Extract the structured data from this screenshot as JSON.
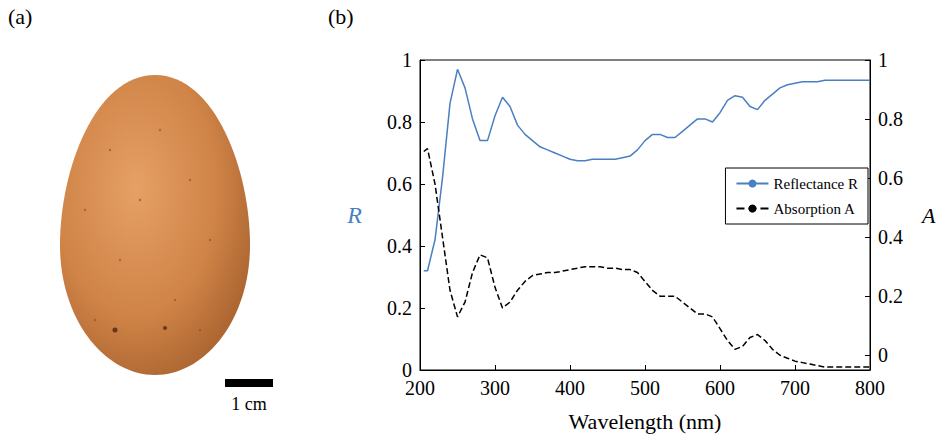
{
  "figure": {
    "panel_labels": [
      "(a)",
      "(b)"
    ],
    "photo": {
      "scale_bar": "1 cm"
    }
  },
  "chart_data": {
    "type": "line",
    "x_label": "Wavelength (nm)",
    "y_label": "R",
    "y2_label": "A",
    "xlim": [
      200,
      800
    ],
    "xticks": [
      200,
      300,
      400,
      500,
      600,
      700,
      800
    ],
    "ylim": [
      0,
      1
    ],
    "yticks": [
      0,
      0.2,
      0.4,
      0.6,
      0.8,
      1
    ],
    "y2lim": [
      -0.05,
      1
    ],
    "y2ticks": [
      0,
      0.2,
      0.4,
      0.6,
      0.8,
      1
    ],
    "grid": false,
    "legend": "right",
    "x": [
      205,
      210,
      220,
      230,
      240,
      250,
      260,
      270,
      280,
      290,
      300,
      310,
      320,
      330,
      340,
      350,
      360,
      370,
      380,
      390,
      400,
      410,
      420,
      430,
      440,
      450,
      460,
      470,
      480,
      490,
      500,
      510,
      520,
      530,
      540,
      550,
      560,
      570,
      580,
      590,
      600,
      610,
      620,
      630,
      640,
      650,
      660,
      670,
      680,
      690,
      700,
      710,
      720,
      730,
      740,
      750,
      760,
      770,
      780,
      790,
      800
    ],
    "series": [
      {
        "name": "Reflectance R",
        "color": "#4a7fc1",
        "line_style": "solid",
        "values": [
          0.32,
          0.32,
          0.42,
          0.62,
          0.86,
          0.97,
          0.91,
          0.81,
          0.74,
          0.74,
          0.82,
          0.88,
          0.85,
          0.79,
          0.76,
          0.74,
          0.72,
          0.71,
          0.7,
          0.69,
          0.68,
          0.675,
          0.675,
          0.68,
          0.68,
          0.68,
          0.68,
          0.685,
          0.69,
          0.71,
          0.74,
          0.76,
          0.76,
          0.75,
          0.75,
          0.77,
          0.79,
          0.81,
          0.81,
          0.8,
          0.83,
          0.87,
          0.885,
          0.88,
          0.85,
          0.84,
          0.87,
          0.89,
          0.91,
          0.92,
          0.925,
          0.93,
          0.93,
          0.93,
          0.935,
          0.935,
          0.935,
          0.935,
          0.935,
          0.935,
          0.935
        ]
      },
      {
        "name": "Absorption A",
        "color": "#000000",
        "line_style": "dashed",
        "axis": "y2",
        "values": [
          0.69,
          0.7,
          0.58,
          0.4,
          0.22,
          0.13,
          0.18,
          0.28,
          0.34,
          0.33,
          0.23,
          0.16,
          0.18,
          0.22,
          0.25,
          0.27,
          0.275,
          0.28,
          0.28,
          0.285,
          0.29,
          0.295,
          0.3,
          0.3,
          0.3,
          0.295,
          0.295,
          0.29,
          0.29,
          0.28,
          0.25,
          0.22,
          0.2,
          0.2,
          0.2,
          0.18,
          0.16,
          0.14,
          0.14,
          0.13,
          0.09,
          0.05,
          0.02,
          0.03,
          0.06,
          0.07,
          0.05,
          0.02,
          0.0,
          -0.01,
          -0.02,
          -0.025,
          -0.03,
          -0.035,
          -0.04,
          -0.04,
          -0.04,
          -0.04,
          -0.04,
          -0.04,
          -0.04
        ]
      }
    ]
  }
}
